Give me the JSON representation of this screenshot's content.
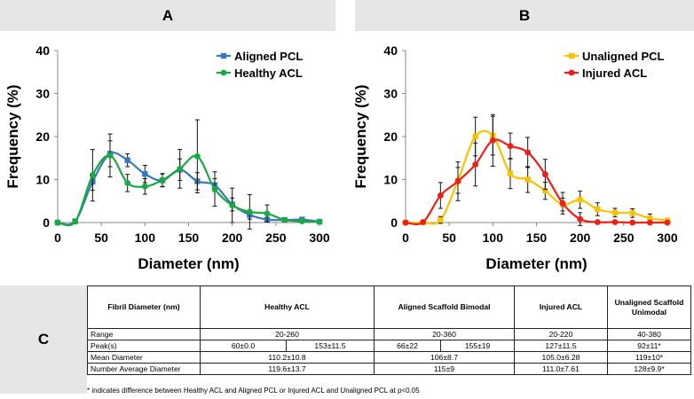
{
  "panels": {
    "a": "A",
    "b": "B",
    "c": "C"
  },
  "chart_data": [
    {
      "type": "line",
      "panel": "A",
      "xlabel": "Diameter (nm)",
      "ylabel": "Frequency (%)",
      "xlim": [
        0,
        300
      ],
      "ylim": [
        0,
        40
      ],
      "x_ticks": [
        "0",
        "50",
        "100",
        "150",
        "200",
        "250",
        "300"
      ],
      "y_ticks": [
        "0",
        "10",
        "20",
        "30",
        "40"
      ],
      "legend_position": "top-right",
      "series": [
        {
          "name": "Aligned PCL",
          "color": "#3a78b8",
          "marker": "square",
          "x": [
            0,
            20,
            40,
            60,
            80,
            100,
            120,
            140,
            160,
            180,
            200,
            220,
            240,
            260,
            280,
            300
          ],
          "y": [
            0,
            0.3,
            9.5,
            16,
            14.5,
            11.3,
            9.8,
            12.3,
            9.6,
            8.7,
            4.2,
            1.8,
            0.7,
            0.6,
            0.7,
            0.2
          ],
          "error": [
            0,
            0.5,
            2,
            3,
            1.5,
            2,
            1.5,
            2.5,
            2,
            1.5,
            1.5,
            1,
            0.5,
            0.5,
            0.5,
            0.3
          ]
        },
        {
          "name": "Healthy ACL",
          "color": "#1aa843",
          "marker": "circle",
          "x": [
            0,
            20,
            40,
            60,
            80,
            100,
            120,
            140,
            160,
            180,
            200,
            220,
            240,
            260,
            280,
            300
          ],
          "y": [
            0,
            0.2,
            11,
            15.6,
            9.2,
            8.4,
            9.9,
            12.5,
            15.4,
            7.8,
            4,
            2.5,
            2.1,
            0.6,
            0.3,
            0.2
          ],
          "error": [
            0,
            0.3,
            6,
            5,
            2,
            1.8,
            1.5,
            4.5,
            8.5,
            4,
            4,
            4,
            2,
            0.5,
            0.3,
            0.3
          ]
        }
      ]
    },
    {
      "type": "line",
      "panel": "B",
      "xlabel": "Diameter (nm)",
      "ylabel": "Frequency (%)",
      "xlim": [
        0,
        300
      ],
      "ylim": [
        0,
        40
      ],
      "x_ticks": [
        "0",
        "50",
        "100",
        "150",
        "200",
        "250",
        "300"
      ],
      "y_ticks": [
        "0",
        "10",
        "20",
        "30",
        "40"
      ],
      "legend_position": "top-right",
      "series": [
        {
          "name": "Unaligned PCL",
          "color": "#f5c400",
          "marker": "square",
          "x": [
            0,
            20,
            40,
            60,
            80,
            100,
            120,
            140,
            160,
            180,
            200,
            220,
            240,
            260,
            280,
            300
          ],
          "y": [
            0,
            0,
            0.6,
            9.8,
            20,
            20.2,
            11.4,
            10,
            7.4,
            4.2,
            5.3,
            3.1,
            2.3,
            2.2,
            1,
            0.5
          ],
          "error": [
            0,
            0,
            0.8,
            3,
            4.5,
            4.5,
            3.5,
            3,
            2,
            1.5,
            2,
            1.5,
            1,
            1,
            1,
            0.5
          ]
        },
        {
          "name": "Injured ACL",
          "color": "#e8211a",
          "marker": "circle",
          "x": [
            0,
            20,
            40,
            60,
            80,
            100,
            120,
            140,
            160,
            180,
            200,
            220,
            240,
            260,
            280,
            300
          ],
          "y": [
            0,
            0.1,
            6.3,
            9.6,
            13.5,
            19.1,
            17.8,
            16.3,
            11.2,
            4.5,
            0.8,
            0.1,
            0.1,
            0,
            0,
            0
          ],
          "error": [
            0,
            0.2,
            3,
            4.5,
            5,
            6,
            3,
            3.5,
            3.5,
            2.5,
            1.5,
            0.3,
            0.2,
            0,
            0,
            0
          ]
        }
      ]
    }
  ],
  "table": {
    "header": [
      "Fibril Diameter (nm)",
      "Healthy ACL",
      "Aligned Scaffold Bimodal",
      "Injured ACL",
      "Unaligned Scaffold Unimodal"
    ],
    "range": {
      "label": "Range",
      "healthy": "20-260",
      "aligned": "20-360",
      "injured": "20-220",
      "unaligned": "40-380"
    },
    "peaks": {
      "label": "Peak(s)",
      "healthy_1": "60±0.0",
      "healthy_2": "153±11.5",
      "aligned_1": "66±22",
      "aligned_2": "155±19",
      "injured": "127±11.5",
      "unaligned": "92±11*"
    },
    "mean": {
      "label": "Mean Diameter",
      "healthy": "110.2±10.8",
      "aligned": "106±8.7",
      "injured": "105.0±6.28",
      "unaligned": "119±10*"
    },
    "number_average": {
      "label": "Number Average Diameter",
      "healthy": "119.6±13.7",
      "aligned": "115±9",
      "injured": "111.0±7.61",
      "unaligned": "128±9.9*"
    },
    "footnote": "* indicates difference between Healthy ACL and Aligned PCL or Injured ACL and Unaligned PCL at  p<0.05"
  }
}
